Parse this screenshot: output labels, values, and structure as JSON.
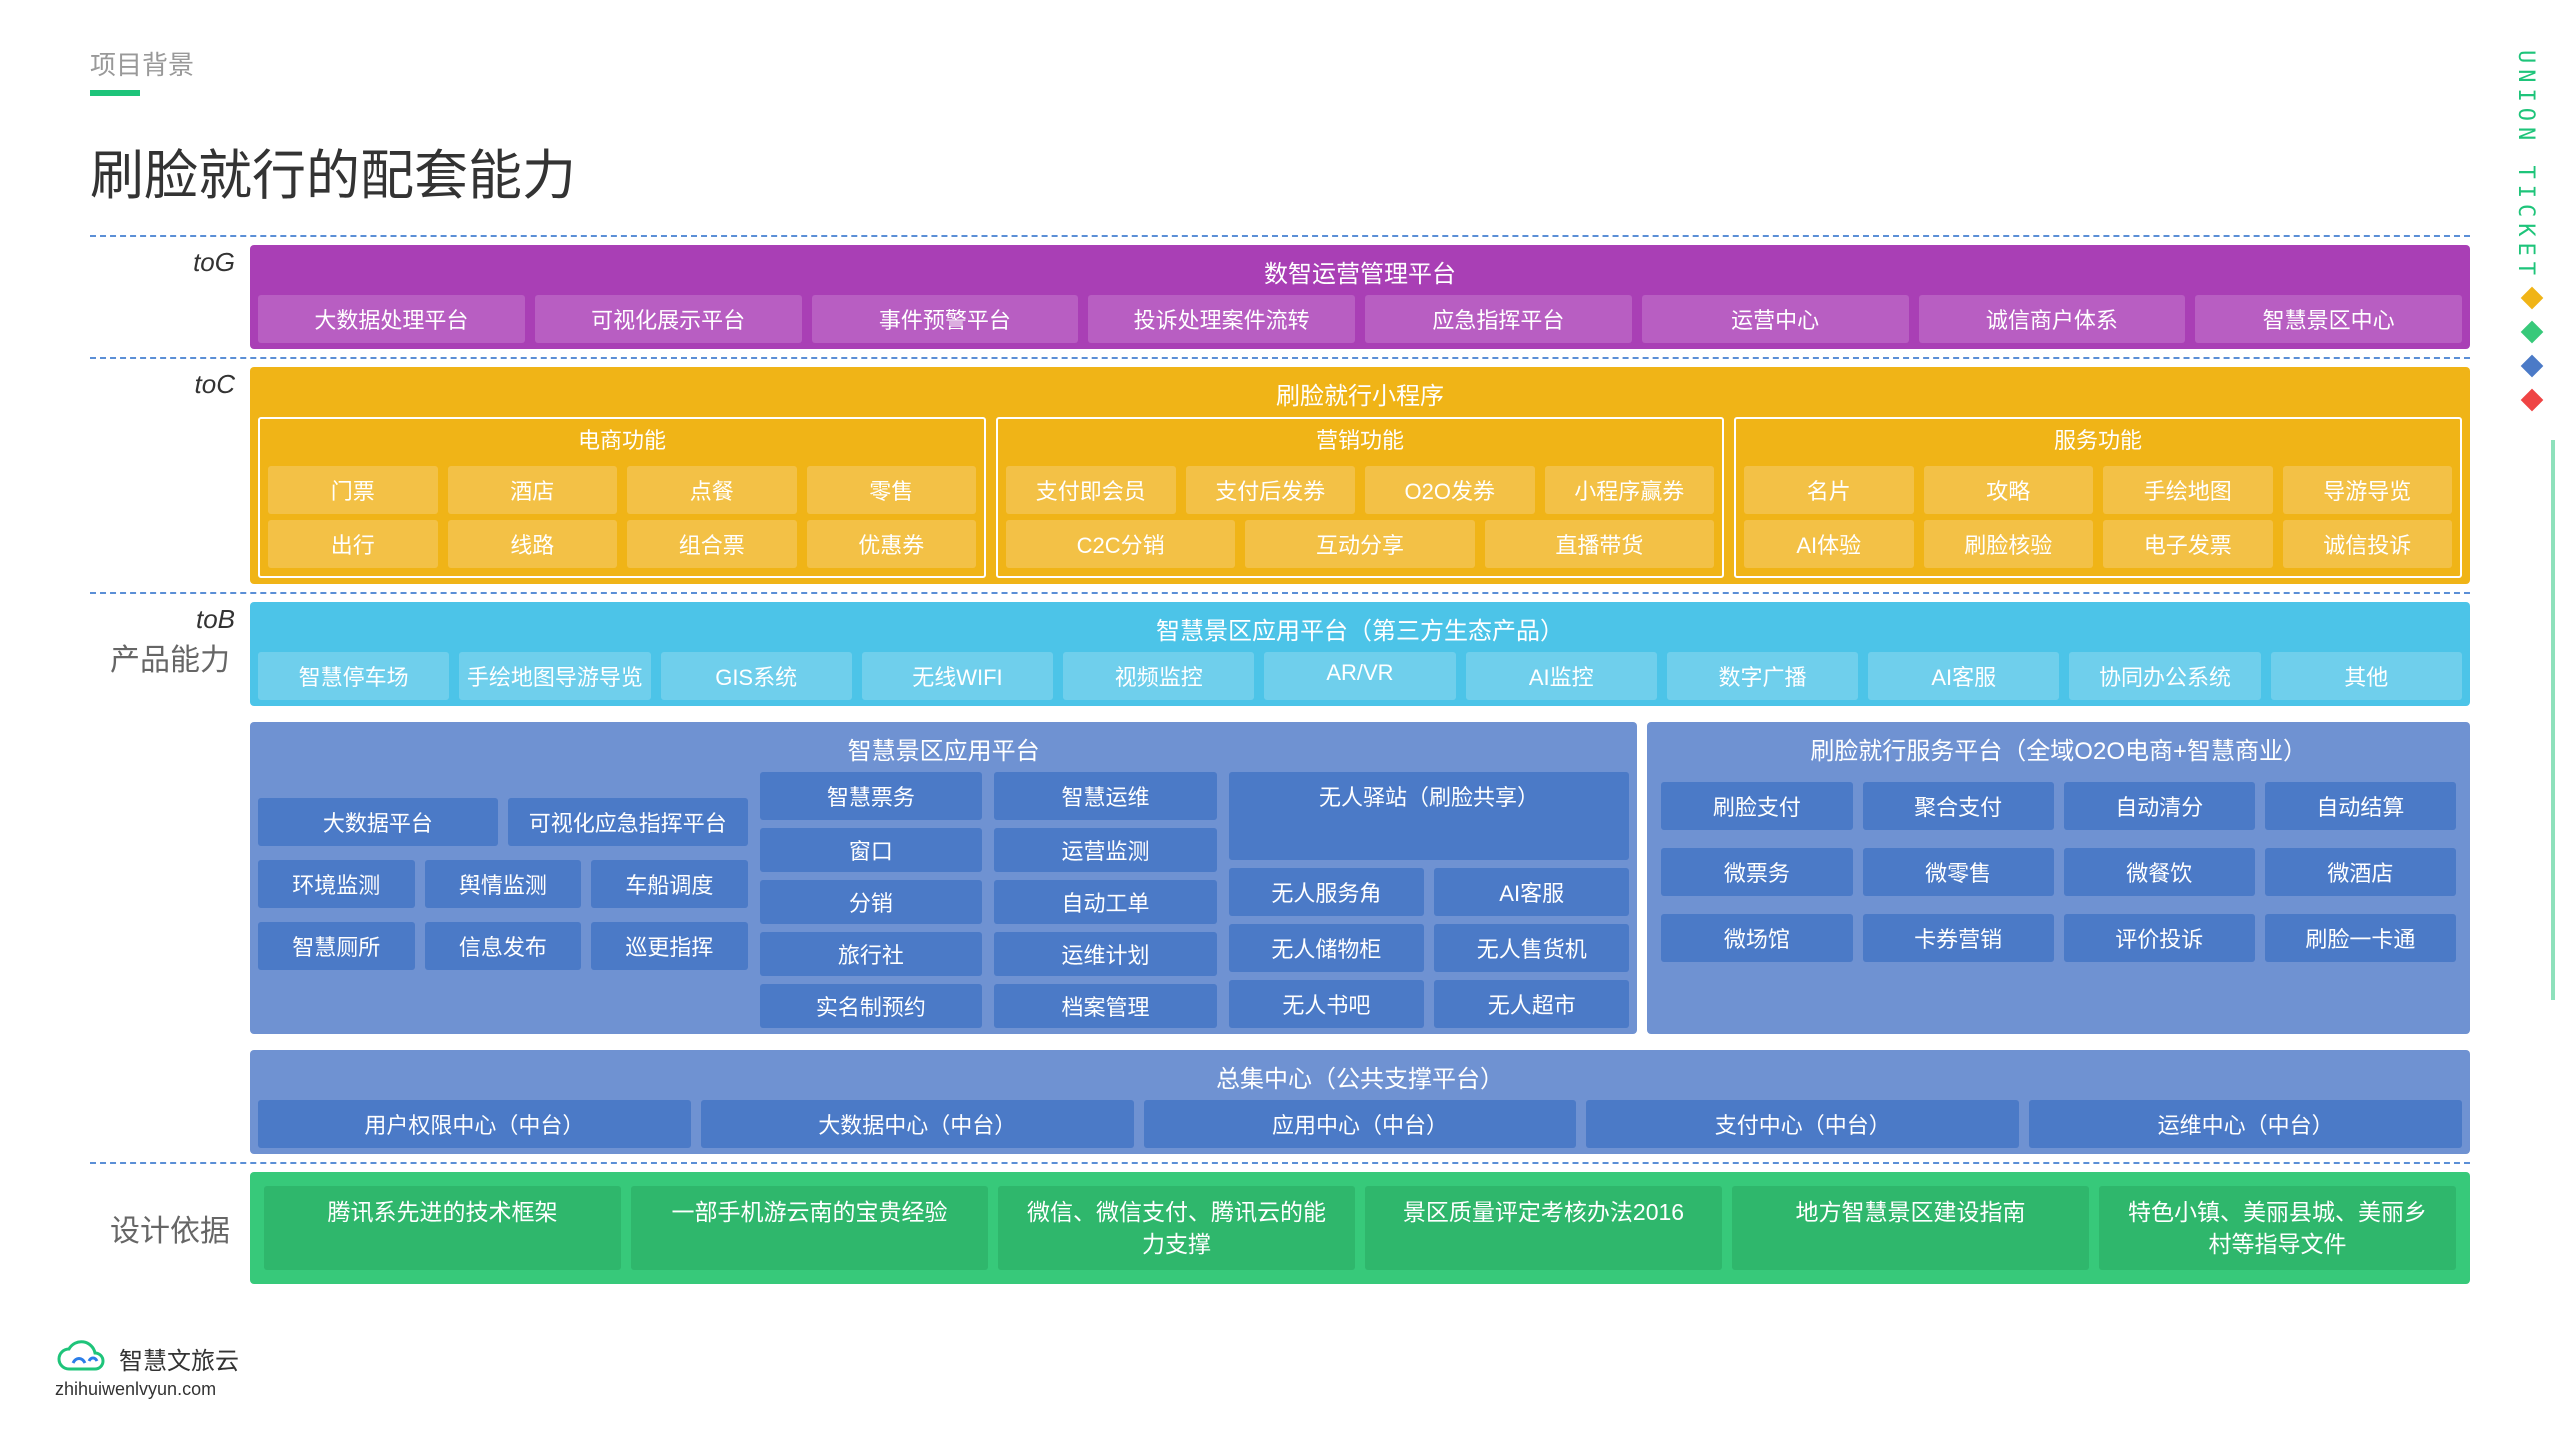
{
  "breadcrumb": "项目背景",
  "title": "刷脸就行的配套能力",
  "sidetext": "UNION TICKET",
  "labels": {
    "toG": "toG",
    "toC": "toC",
    "toB": "toB",
    "product": "产品能力",
    "design": "设计依据"
  },
  "purple": {
    "title": "数智运营管理平台",
    "cells": [
      "大数据处理平台",
      "可视化展示平台",
      "事件预警平台",
      "投诉处理案件流转",
      "应急指挥平台",
      "运营中心",
      "诚信商户体系",
      "智慧景区中心"
    ]
  },
  "yellow": {
    "title": "刷脸就行小程序",
    "groups": [
      {
        "title": "电商功能",
        "rows": [
          [
            "门票",
            "酒店",
            "点餐",
            "零售"
          ],
          [
            "出行",
            "线路",
            "组合票",
            "优惠券"
          ]
        ]
      },
      {
        "title": "营销功能",
        "rows": [
          [
            "支付即会员",
            "支付后发券",
            "O2O发券",
            "小程序赢券"
          ],
          [
            "C2C分销",
            "互动分享",
            "直播带货"
          ]
        ]
      },
      {
        "title": "服务功能",
        "rows": [
          [
            "名片",
            "攻略",
            "手绘地图",
            "导游导览"
          ],
          [
            "AI体验",
            "刷脸核验",
            "电子发票",
            "诚信投诉"
          ]
        ]
      }
    ]
  },
  "cyan": {
    "title": "智慧景区应用平台（第三方生态产品）",
    "cells": [
      "智慧停车场",
      "手绘地图导游导览",
      "GIS系统",
      "无线WIFI",
      "视频监控",
      "AR/VR",
      "AI监控",
      "数字广播",
      "AI客服",
      "协同办公系统",
      "其他"
    ]
  },
  "blueLeft": {
    "title": "智慧景区应用平台",
    "col1": [
      [
        "大数据平台",
        "可视化应急指挥平台"
      ],
      [
        "环境监测",
        "舆情监测",
        "车船调度"
      ],
      [
        "智慧厕所",
        "信息发布",
        "巡更指挥"
      ]
    ],
    "col2": {
      "title": "智慧票务",
      "cells": [
        "窗口",
        "分销",
        "旅行社",
        "实名制预约"
      ]
    },
    "col3": {
      "title": "智慧运维",
      "cells": [
        "运营监测",
        "自动工单",
        "运维计划",
        "档案管理"
      ]
    },
    "col4": {
      "title": "无人驿站（刷脸共享）",
      "rows": [
        [
          "无人服务角",
          "AI客服"
        ],
        [
          "无人储物柜",
          "无人售货机"
        ],
        [
          "无人书吧",
          "无人超市"
        ]
      ]
    }
  },
  "blueRight": {
    "title": "刷脸就行服务平台（全域O2O电商+智慧商业）",
    "rows": [
      [
        "刷脸支付",
        "聚合支付",
        "自动清分",
        "自动结算"
      ],
      [
        "微票务",
        "微零售",
        "微餐饮",
        "微酒店"
      ],
      [
        "微场馆",
        "卡券营销",
        "评价投诉",
        "刷脸一卡通"
      ]
    ]
  },
  "blueBottom": {
    "title": "总集中心（公共支撑平台）",
    "cells": [
      "用户权限中心（中台）",
      "大数据中心（中台）",
      "应用中心（中台）",
      "支付中心（中台）",
      "运维中心（中台）"
    ]
  },
  "green": {
    "cells": [
      "腾讯系先进的技术框架",
      "一部手机游云南的宝贵经验",
      "微信、微信支付、腾讯云的能力支撑",
      "景区质量评定考核办法2016",
      "地方智慧景区建设指南",
      "特色小镇、美丽县城、美丽乡村等指导文件"
    ]
  },
  "logo": {
    "name": "智慧文旅云",
    "url": "zhihuiwenlvyun.com"
  },
  "colors": {
    "purple": "#a93fb5",
    "yellow": "#f0b417",
    "cyan": "#4cc4e8",
    "blue": "#6f92d2",
    "green": "#37c97a",
    "accent": "#1ec47a"
  },
  "diamonds": [
    "#f0b417",
    "#37c97a",
    "#4b7ac7",
    "#ef4444"
  ]
}
